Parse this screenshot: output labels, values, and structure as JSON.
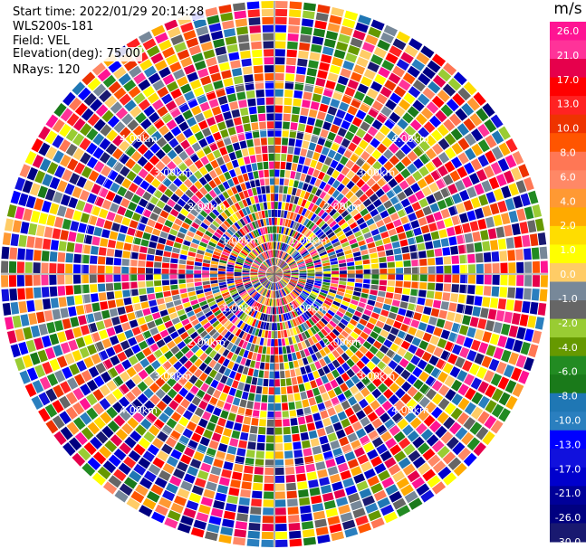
{
  "info": {
    "start_time": "Start time: 2022/01/29 20:14:28",
    "instrument": "WLS200s-181",
    "field": "Field: VEL",
    "elevation": "Elevation(deg): 75.00",
    "nrays": "NRays: 120"
  },
  "chart_data": {
    "type": "heatmap",
    "projection": "polar-ppi",
    "field": "VEL",
    "units": "m/s",
    "nrays": 120,
    "range_rings_km": [
      1.0,
      2.0,
      3.0,
      4.0
    ],
    "range_ring_labels": [
      "1.00km",
      "2.00km",
      "3.00km",
      "4.00km"
    ],
    "max_range_km": 5.7,
    "colorbar": {
      "title": "m/s",
      "ticks": [
        "26.0",
        "21.0",
        "17.0",
        "13.0",
        "10.0",
        "8.0",
        "6.0",
        "4.0",
        "2.0",
        "1.0",
        "0.0",
        "-1.0",
        "-2.0",
        "-4.0",
        "-6.0",
        "-8.0",
        "-10.0",
        "-13.0",
        "-17.0",
        "-21.0",
        "-26.0",
        "-30.0"
      ],
      "colors": [
        "#ff1493",
        "#ff3399",
        "#e6004c",
        "#ff0000",
        "#ff2222",
        "#ee3300",
        "#ff5500",
        "#ff7755",
        "#ff8866",
        "#ff9933",
        "#ffaa00",
        "#ffdd00",
        "#ffff00",
        "#ffcc66",
        "#778899",
        "#666666",
        "#99cc33",
        "#669900",
        "#228b22",
        "#1a7a1a",
        "#1f77b4",
        "#2a7fbf",
        "#0000ff",
        "#1111dd",
        "#0000cd",
        "#000099",
        "#000080",
        "#191970"
      ]
    }
  }
}
